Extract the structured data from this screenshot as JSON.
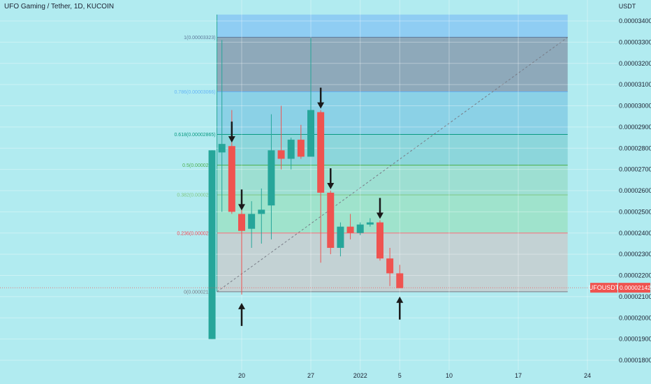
{
  "header": {
    "title": "UFO Gaming / Tether, 1D, KUCOIN"
  },
  "colors": {
    "background": "#b1ebf0",
    "up": "#26a69a",
    "down": "#ef5350",
    "arrow": "#1a1a1a",
    "price_tag": "#ef5350"
  },
  "chart_data": {
    "type": "candlestick",
    "title": "UFO Gaming / Tether, 1D, KUCOIN",
    "y_unit": "USDT",
    "ylim": [
      1.75e-05,
      3.43e-05
    ],
    "y_ticks": [
      "0.00003400",
      "0.00003300",
      "0.00003200",
      "0.00003100",
      "0.00003000",
      "0.00002900",
      "0.00002800",
      "0.00002700",
      "0.00002600",
      "0.00002500",
      "0.00002400",
      "0.00002300",
      "0.00002200",
      "0.00002100",
      "0.00002000",
      "0.00001900",
      "0.00001800"
    ],
    "y_tick_values": [
      3.4e-05,
      3.3e-05,
      3.2e-05,
      3.1e-05,
      3e-05,
      2.9e-05,
      2.8e-05,
      2.7e-05,
      2.6e-05,
      2.5e-05,
      2.4e-05,
      2.3e-05,
      2.2e-05,
      2.1e-05,
      2e-05,
      1.9e-05,
      1.8e-05
    ],
    "x_tick_labels": [
      {
        "day": 20,
        "label": "20"
      },
      {
        "day": 27,
        "label": "27"
      },
      {
        "day": 32,
        "label": "2022"
      },
      {
        "day": 36,
        "label": "5"
      },
      {
        "day": 41,
        "label": "10"
      },
      {
        "day": 48,
        "label": "17"
      },
      {
        "day": 55,
        "label": "24"
      }
    ],
    "candles": [
      {
        "day": 17,
        "open": 1.9e-05,
        "high": 2.79e-05,
        "low": 1.9e-05,
        "close": 2.79e-05
      },
      {
        "day": 18,
        "open": 2.78e-05,
        "high": 3.31e-05,
        "low": 2.5e-05,
        "close": 2.82e-05
      },
      {
        "day": 19,
        "open": 2.81e-05,
        "high": 2.98e-05,
        "low": 2.49e-05,
        "close": 2.5e-05
      },
      {
        "day": 20,
        "open": 2.49e-05,
        "high": 2.58e-05,
        "low": 2.11e-05,
        "close": 2.41e-05
      },
      {
        "day": 21,
        "open": 2.42e-05,
        "high": 2.55e-05,
        "low": 2.33e-05,
        "close": 2.49e-05
      },
      {
        "day": 22,
        "open": 2.49e-05,
        "high": 2.61e-05,
        "low": 2.35e-05,
        "close": 2.51e-05
      },
      {
        "day": 23,
        "open": 2.53e-05,
        "high": 2.96e-05,
        "low": 2.37e-05,
        "close": 2.79e-05
      },
      {
        "day": 24,
        "open": 2.79e-05,
        "high": 3e-05,
        "low": 2.7e-05,
        "close": 2.75e-05
      },
      {
        "day": 25,
        "open": 2.75e-05,
        "high": 2.85e-05,
        "low": 2.7e-05,
        "close": 2.84e-05
      },
      {
        "day": 26,
        "open": 2.84e-05,
        "high": 2.91e-05,
        "low": 2.75e-05,
        "close": 2.76e-05
      },
      {
        "day": 27,
        "open": 2.76e-05,
        "high": 3.32e-05,
        "low": 2.76e-05,
        "close": 2.98e-05
      },
      {
        "day": 28,
        "open": 2.97e-05,
        "high": 2.98e-05,
        "low": 2.26e-05,
        "close": 2.59e-05
      },
      {
        "day": 29,
        "open": 2.59e-05,
        "high": 2.6e-05,
        "low": 2.3e-05,
        "close": 2.33e-05
      },
      {
        "day": 30,
        "open": 2.33e-05,
        "high": 2.45e-05,
        "low": 2.29e-05,
        "close": 2.43e-05
      },
      {
        "day": 31,
        "open": 2.43e-05,
        "high": 2.49e-05,
        "low": 2.37e-05,
        "close": 2.4e-05
      },
      {
        "day": 32,
        "open": 2.4e-05,
        "high": 2.45e-05,
        "low": 2.39e-05,
        "close": 2.44e-05
      },
      {
        "day": 33,
        "open": 2.44e-05,
        "high": 2.47e-05,
        "low": 2.43e-05,
        "close": 2.45e-05
      },
      {
        "day": 34,
        "open": 2.45e-05,
        "high": 2.46e-05,
        "low": 2.27e-05,
        "close": 2.28e-05
      },
      {
        "day": 35,
        "open": 2.28e-05,
        "high": 2.33e-05,
        "low": 2.15e-05,
        "close": 2.21e-05
      },
      {
        "day": 36,
        "open": 2.21e-05,
        "high": 2.25e-05,
        "low": 2.14e-05,
        "close": 2.14e-05
      }
    ],
    "fib_levels": [
      {
        "ratio": 1,
        "price": 3.323e-05,
        "label": "1(0.00003323)",
        "color": "#5d7a9a",
        "fill": "#8ea9ba"
      },
      {
        "ratio": 0.786,
        "price": 3.066e-05,
        "label": "0.786(0.00003066)",
        "color": "#64b5f6",
        "fill": "#8bd1e6"
      },
      {
        "ratio": 0.618,
        "price": 2.865e-05,
        "label": "0.618(0.00002865)",
        "color": "#089981",
        "fill": "#8cd6db"
      },
      {
        "ratio": 0.5,
        "price": 2.72e-05,
        "label": "0.5(0.0000272)",
        "color": "#4caf50",
        "fill": "#9ddfd2"
      },
      {
        "ratio": 0.382,
        "price": 2.58e-05,
        "label": "0.382(0.0000258)",
        "color": "#81c784",
        "fill": "#9fe3cc"
      },
      {
        "ratio": 0.236,
        "price": 2.4e-05,
        "label": "0.236(0.0000240)",
        "color": "#f23645",
        "fill": "#c3d2d4"
      },
      {
        "ratio": 0,
        "price": 2.123e-05,
        "label": "0(0.00002123)",
        "color": "#787b86",
        "fill": ""
      }
    ],
    "fib_start_day": 17.5,
    "fib_end_day": 53,
    "top_zone_price": 3.43e-05,
    "arrows": [
      {
        "day": 19,
        "direction": "down",
        "price": 2.82e-05
      },
      {
        "day": 20,
        "direction": "down",
        "price": 2.5e-05
      },
      {
        "day": 28,
        "direction": "down",
        "price": 2.98e-05
      },
      {
        "day": 29,
        "direction": "down",
        "price": 2.6e-05
      },
      {
        "day": 34,
        "direction": "down",
        "price": 2.46e-05
      },
      {
        "day": 20,
        "direction": "up",
        "price": 2.11e-05
      },
      {
        "day": 36,
        "direction": "up",
        "price": 2.14e-05
      }
    ],
    "last_price": {
      "symbol": "UFOUSDT",
      "value": "0.00002142",
      "price": 2.142e-05
    }
  }
}
